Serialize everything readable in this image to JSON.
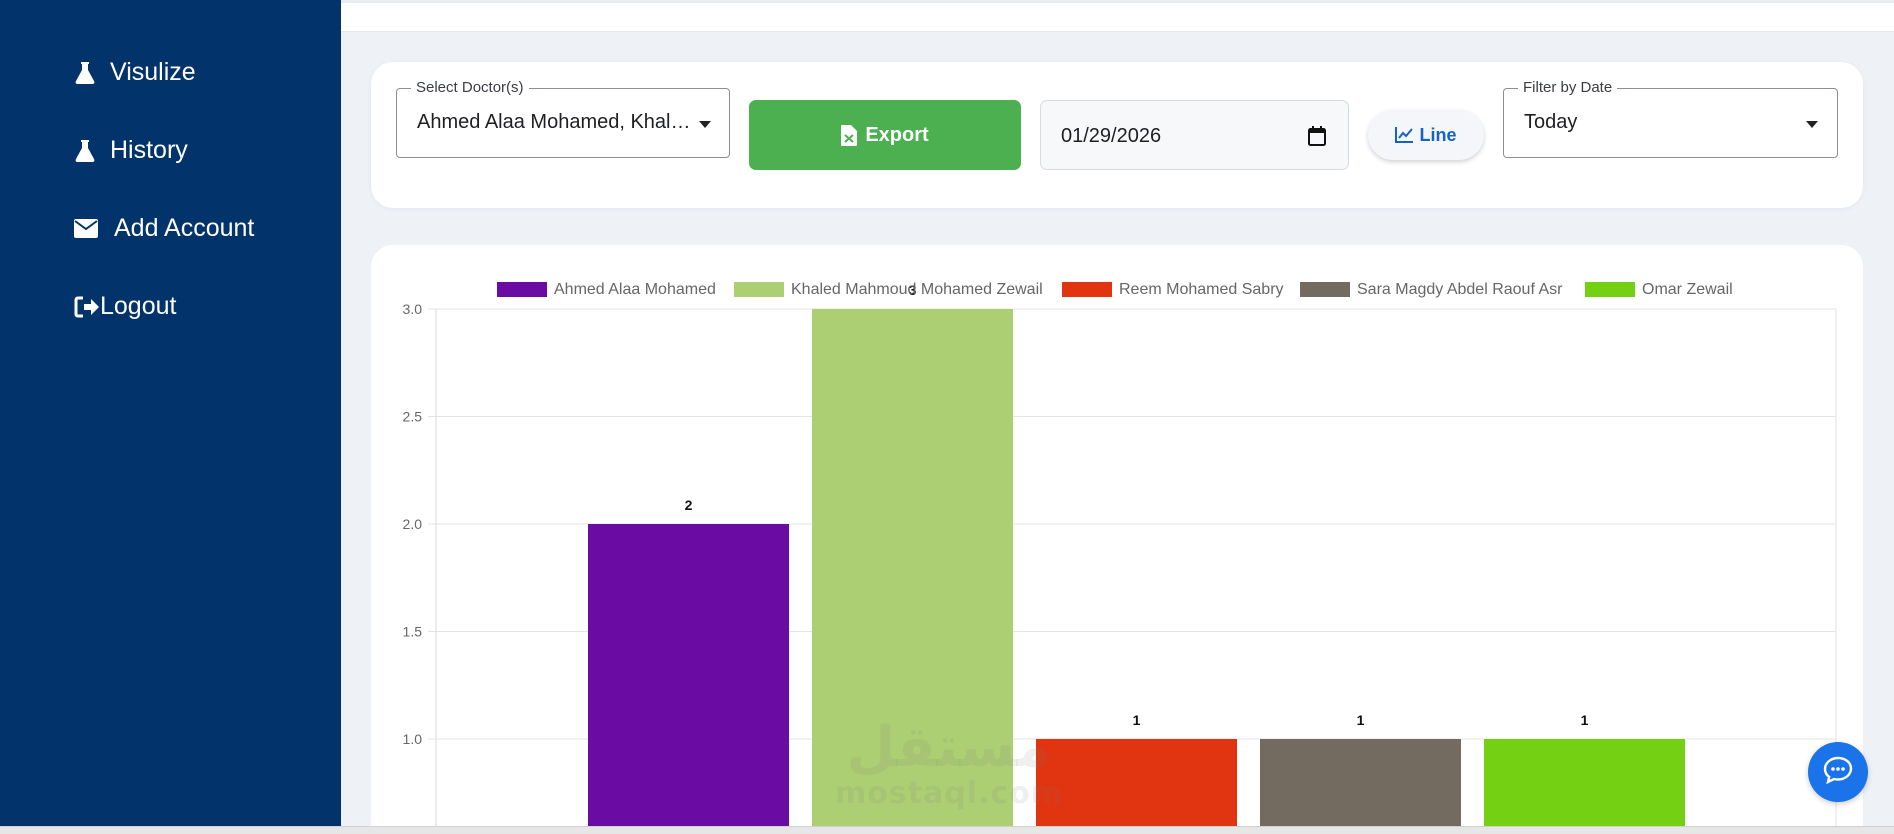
{
  "sidebar": {
    "items": [
      {
        "label": "Visulize",
        "icon": "flask-icon"
      },
      {
        "label": "History",
        "icon": "flask-icon"
      },
      {
        "label": "Add Account",
        "icon": "envelope-icon"
      },
      {
        "label": "Logout",
        "icon": "sign-out-icon"
      }
    ],
    "background": "#02346b"
  },
  "filters": {
    "doctor_select": {
      "legend": "Select Doctor(s)",
      "value": "Ahmed Alaa Mohamed, Khaled Mahmoud Mohamed Zewail"
    },
    "export_label": "Export",
    "date_value": "01/29/2026",
    "line_label": "Line",
    "date_filter": {
      "legend": "Filter by Date",
      "value": "Today"
    }
  },
  "colors": {
    "export": "#4caf50",
    "accent": "#1565c0",
    "chat": "#1a73e8"
  },
  "watermark": {
    "arabic": "مستقل",
    "latin": "mostaql.com"
  },
  "chart_data": {
    "type": "bar",
    "categories": [
      "Ahmed Alaa Mohamed",
      "Khaled Mahmoud Mohamed Zewail",
      "Reem Mohamed Sabry",
      "Sara Magdy Abdel Raouf Asr",
      "Omar Zewail"
    ],
    "values": [
      2,
      3,
      1,
      1,
      1
    ],
    "data_labels": [
      "2",
      "3",
      "1",
      "1",
      "1"
    ],
    "colors": [
      "#6a0ba3",
      "#adcf74",
      "#e03510",
      "#736a60",
      "#73d013"
    ],
    "y_ticks": [
      "3.0",
      "2.5",
      "2.0",
      "1.5",
      "1.0"
    ],
    "ylim": [
      0.8,
      3.0
    ],
    "legend": "top",
    "grid": true
  }
}
